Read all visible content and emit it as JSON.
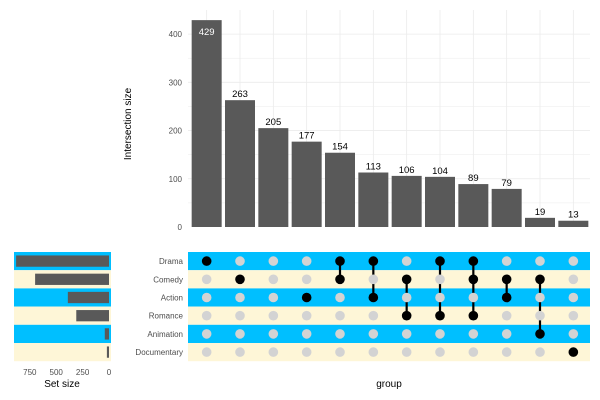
{
  "chart_data": {
    "type": "bar",
    "title": "",
    "colors": {
      "bar": "#595959",
      "stripe_blue": "#00bfff",
      "stripe_cream": "#fef6d7",
      "dot_on": "#000000",
      "dot_off": "#d3d3d3",
      "grid": "#ebebeb",
      "axis_text": "#4d4d4d",
      "label_text": "#000000",
      "bar_label_first": "#ffffff"
    },
    "intersections": {
      "ylabel": "Intersection size",
      "ylim": [
        0,
        450
      ],
      "yticks": [
        0,
        100,
        200,
        300,
        400
      ],
      "values": [
        429,
        263,
        205,
        177,
        154,
        113,
        106,
        104,
        89,
        79,
        19,
        13
      ],
      "labels": [
        "429",
        "263",
        "205",
        "177",
        "154",
        "113",
        "106",
        "104",
        "89",
        "79",
        "19",
        "13"
      ],
      "membership": [
        [
          "Drama"
        ],
        [
          "Comedy"
        ],
        [],
        [
          "Action"
        ],
        [
          "Drama",
          "Comedy"
        ],
        [
          "Drama",
          "Action"
        ],
        [
          "Comedy",
          "Romance"
        ],
        [
          "Drama",
          "Romance"
        ],
        [
          "Drama",
          "Comedy",
          "Romance"
        ],
        [
          "Comedy",
          "Action"
        ],
        [
          "Comedy",
          "Animation"
        ],
        [
          "Documentary"
        ]
      ]
    },
    "sets": {
      "names": [
        "Drama",
        "Comedy",
        "Action",
        "Romance",
        "Animation",
        "Documentary"
      ],
      "sizes": [
        880,
        700,
        390,
        310,
        40,
        20
      ],
      "stripes": [
        "blue",
        "cream",
        "blue",
        "cream",
        "blue",
        "cream"
      ]
    },
    "set_size_axis": {
      "xlabel": "Set size",
      "max": 900,
      "ticks": [
        750,
        500,
        250,
        0
      ],
      "tick_labels": [
        "750",
        "500",
        "250",
        "0"
      ]
    },
    "xlabel": "group"
  }
}
